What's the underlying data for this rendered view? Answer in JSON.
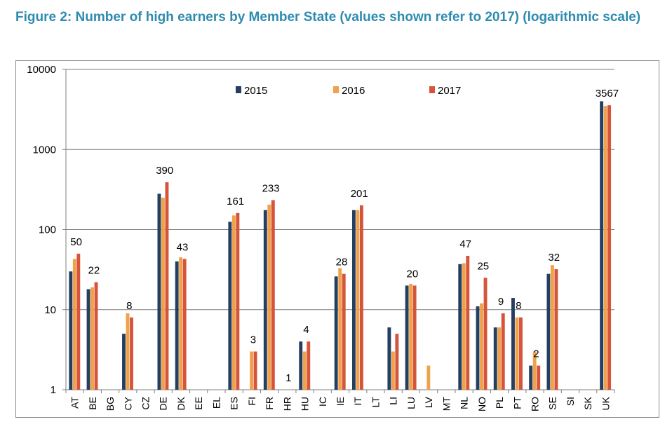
{
  "figure": {
    "title": "Figure 2: Number of high earners by Member State (values shown refer to 2017) (logarithmic scale)"
  },
  "colors": {
    "series_2015": "#243f60",
    "series_2016": "#f0a24b",
    "series_2017": "#d6553a",
    "title": "#2e8bb0",
    "grid": "#7f7f7f"
  },
  "chart_data": {
    "type": "bar",
    "yscale": "log",
    "ylim": [
      1,
      10000
    ],
    "yticks": [
      "1",
      "10",
      "100",
      "1000",
      "10000"
    ],
    "grid": true,
    "legend_position": "top",
    "categories": [
      "AT",
      "BE",
      "BG",
      "CY",
      "CZ",
      "DE",
      "DK",
      "EE",
      "EL",
      "ES",
      "FI",
      "FR",
      "HR",
      "HU",
      "IC",
      "IE",
      "IT",
      "LT",
      "LI",
      "LU",
      "LV",
      "MT",
      "NL",
      "NO",
      "PL",
      "PT",
      "RO",
      "SE",
      "SI",
      "SK",
      "UK"
    ],
    "series": [
      {
        "name": "2015",
        "values": [
          30,
          18,
          null,
          5,
          null,
          280,
          40,
          null,
          null,
          125,
          null,
          175,
          null,
          4,
          null,
          26,
          175,
          null,
          6,
          20,
          null,
          null,
          37,
          11,
          6,
          14,
          2,
          28,
          null,
          null,
          4000
        ]
      },
      {
        "name": "2016",
        "values": [
          43,
          19,
          null,
          9,
          null,
          250,
          45,
          null,
          null,
          150,
          3,
          205,
          null,
          3,
          null,
          33,
          175,
          null,
          3,
          21,
          2,
          null,
          38,
          12,
          6,
          8,
          3,
          36,
          null,
          null,
          3500
        ]
      },
      {
        "name": "2017",
        "values": [
          50,
          22,
          null,
          8,
          null,
          390,
          43,
          null,
          null,
          161,
          3,
          233,
          1,
          4,
          null,
          28,
          201,
          null,
          5,
          20,
          null,
          null,
          47,
          25,
          9,
          8,
          2,
          32,
          null,
          null,
          3567
        ]
      }
    ],
    "data_labels": [
      {
        "category": "AT",
        "text": "50"
      },
      {
        "category": "BE",
        "text": "22"
      },
      {
        "category": "CY",
        "text": "8"
      },
      {
        "category": "DE",
        "text": "390"
      },
      {
        "category": "DK",
        "text": "43"
      },
      {
        "category": "ES",
        "text": "161"
      },
      {
        "category": "FI",
        "text": "3"
      },
      {
        "category": "FR",
        "text": "233"
      },
      {
        "category": "HR",
        "text": "1"
      },
      {
        "category": "HU",
        "text": "4"
      },
      {
        "category": "IE",
        "text": "28"
      },
      {
        "category": "IT",
        "text": "201"
      },
      {
        "category": "LU",
        "text": "20"
      },
      {
        "category": "NL",
        "text": "47"
      },
      {
        "category": "NO",
        "text": "25"
      },
      {
        "category": "PL",
        "text": "9"
      },
      {
        "category": "PT",
        "text": "8"
      },
      {
        "category": "RO",
        "text": "2"
      },
      {
        "category": "SE",
        "text": "32"
      },
      {
        "category": "UK",
        "text": "3567"
      }
    ]
  }
}
